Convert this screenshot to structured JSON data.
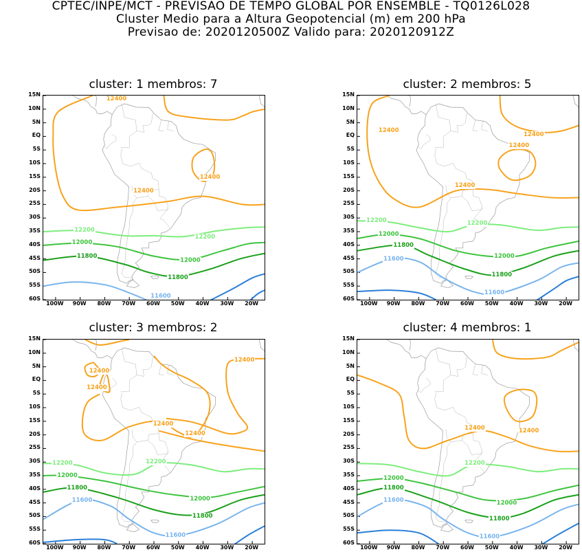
{
  "header": {
    "line1": "CPTEC/INPE/MCT - PREVISAO DE TEMPO GLOBAL POR ENSEMBLE - TQ0126L028",
    "line2": "Cluster Medio para a Altura Geopotencial (m) em 200 hPa",
    "line3": "Previsao de: 2020120500Z   Valido para: 2020120912Z"
  },
  "axes": {
    "lat_labels": [
      "15N",
      "10N",
      "5N",
      "EQ",
      "5S",
      "10S",
      "15S",
      "20S",
      "25S",
      "30S",
      "35S",
      "40S",
      "45S",
      "50S",
      "55S",
      "60S"
    ],
    "lon_labels": [
      "100W",
      "90W",
      "80W",
      "70W",
      "60W",
      "50W",
      "40W",
      "30W",
      "20W"
    ]
  },
  "colors": {
    "c12400": "#f7a21b",
    "c12200": "#7ded7d",
    "c12000": "#3cc33c",
    "c11800": "#19a019",
    "c11600": "#78b4ee",
    "c11400": "#2a7ed8",
    "land": "#9a9a9a"
  },
  "panels": [
    {
      "title": "cluster: 1   membros: 7",
      "labels": [
        {
          "text": "12400",
          "lon": -76,
          "lat": 14.6,
          "level": "12400"
        },
        {
          "text": "12400",
          "lon": -38,
          "lat": -15,
          "level": "12400"
        },
        {
          "text": "12400",
          "lon": -65,
          "lat": -20,
          "level": "12400"
        },
        {
          "text": "12200",
          "lon": -89,
          "lat": -34.5,
          "level": "12200"
        },
        {
          "text": "12200",
          "lon": -40,
          "lat": -37,
          "level": "12200"
        },
        {
          "text": "12000",
          "lon": -90,
          "lat": -39,
          "level": "12000"
        },
        {
          "text": "12000",
          "lon": -46,
          "lat": -45.5,
          "level": "12000"
        },
        {
          "text": "11800",
          "lon": -88,
          "lat": -44,
          "level": "11800"
        },
        {
          "text": "11800",
          "lon": -51,
          "lat": -52,
          "level": "11800"
        },
        {
          "text": "11600",
          "lon": -58,
          "lat": -60,
          "level": "11600"
        }
      ]
    },
    {
      "title": "cluster: 2   membros: 5",
      "labels": [
        {
          "text": "12400",
          "lon": -93,
          "lat": 2.2,
          "level": "12400"
        },
        {
          "text": "12400",
          "lon": -34,
          "lat": 0.5,
          "level": "12400"
        },
        {
          "text": "12400",
          "lon": -40,
          "lat": -3.5,
          "level": "12400"
        },
        {
          "text": "12400",
          "lon": -62,
          "lat": -18,
          "level": "12400"
        },
        {
          "text": "12200",
          "lon": -98,
          "lat": -31,
          "level": "12200"
        },
        {
          "text": "12200",
          "lon": -57,
          "lat": -32,
          "level": "12200"
        },
        {
          "text": "12000",
          "lon": -93,
          "lat": -36,
          "level": "12000"
        },
        {
          "text": "12000",
          "lon": -46,
          "lat": -44,
          "level": "12000"
        },
        {
          "text": "11800",
          "lon": -87,
          "lat": -40,
          "level": "11800"
        },
        {
          "text": "11800",
          "lon": -47,
          "lat": -51,
          "level": "11800"
        },
        {
          "text": "11600",
          "lon": -91,
          "lat": -45,
          "level": "11600"
        },
        {
          "text": "11600",
          "lon": -50,
          "lat": -57.5,
          "level": "11600"
        }
      ]
    },
    {
      "title": "cluster: 3   membros: 2",
      "labels": [
        {
          "text": "12400",
          "lon": -83,
          "lat": 3.5,
          "level": "12400"
        },
        {
          "text": "12400",
          "lon": -84,
          "lat": -2.8,
          "level": "12400"
        },
        {
          "text": "12400",
          "lon": -24,
          "lat": 7.5,
          "level": "12400"
        },
        {
          "text": "12400",
          "lon": -57,
          "lat": -16,
          "level": "12400"
        },
        {
          "text": "12400",
          "lon": -44,
          "lat": -19.5,
          "level": "12400"
        },
        {
          "text": "12200",
          "lon": -98,
          "lat": -30.5,
          "level": "12200"
        },
        {
          "text": "12200",
          "lon": -60,
          "lat": -30,
          "level": "12200"
        },
        {
          "text": "12000",
          "lon": -96,
          "lat": -35,
          "level": "12000"
        },
        {
          "text": "12000",
          "lon": -42,
          "lat": -43.5,
          "level": "12000"
        },
        {
          "text": "11800",
          "lon": -92,
          "lat": -39.5,
          "level": "11800"
        },
        {
          "text": "11800",
          "lon": -41,
          "lat": -50,
          "level": "11800"
        },
        {
          "text": "11600",
          "lon": -90,
          "lat": -44,
          "level": "11600"
        },
        {
          "text": "11600",
          "lon": -52,
          "lat": -57,
          "level": "11600"
        }
      ]
    },
    {
      "title": "cluster: 4   membros: 1",
      "labels": [
        {
          "text": "12400",
          "lon": -36,
          "lat": -18.5,
          "level": "12400"
        },
        {
          "text": "12400",
          "lon": -58,
          "lat": -17.5,
          "level": "12400"
        },
        {
          "text": "12200",
          "lon": -58,
          "lat": -30.5,
          "level": "12200"
        },
        {
          "text": "12000",
          "lon": -91,
          "lat": -36,
          "level": "12000"
        },
        {
          "text": "12000",
          "lon": -45,
          "lat": -45,
          "level": "12000"
        },
        {
          "text": "11800",
          "lon": -91,
          "lat": -39.5,
          "level": "11800"
        },
        {
          "text": "11800",
          "lon": -48,
          "lat": -51,
          "level": "11800"
        },
        {
          "text": "11600",
          "lon": -91,
          "lat": -44,
          "level": "11600"
        },
        {
          "text": "11600",
          "lon": -52,
          "lat": -57.5,
          "level": "11600"
        }
      ]
    }
  ]
}
